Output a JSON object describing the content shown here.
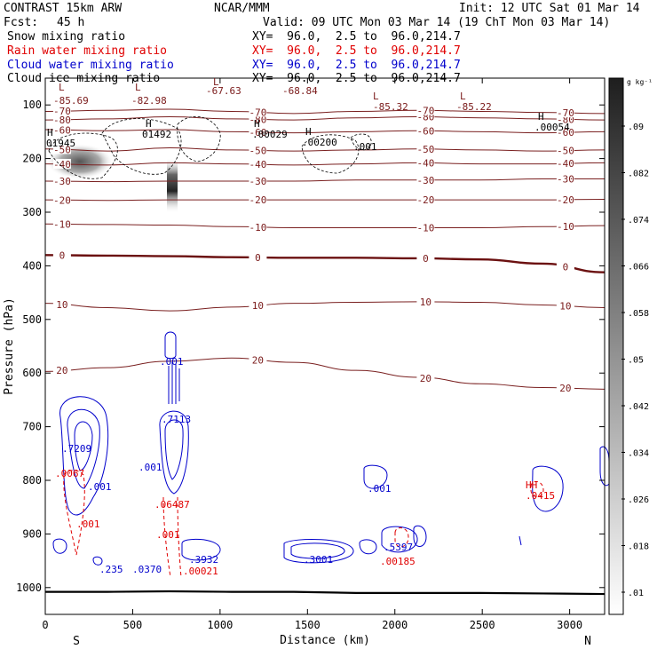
{
  "header": {
    "model": "CONTRAST 15km ARW",
    "org": "NCAR/MMM",
    "init": "Init: 12 UTC Sat 01 Mar 14",
    "fcst_label": "Fcst:",
    "fcst_value": "45 h",
    "valid": "Valid: 09 UTC Mon 03 Mar 14 (19 ChT Mon 03 Mar 14)",
    "fields": [
      {
        "name": "Snow mixing ratio",
        "xy": "XY=  96.0,  2.5 to  96.0,214.7",
        "color": "#000000"
      },
      {
        "name": "Rain water mixing ratio",
        "xy": "XY=  96.0,  2.5 to  96.0,214.7",
        "color": "#e00000"
      },
      {
        "name": "Cloud water mixing ratio",
        "xy": "XY=  96.0,  2.5 to  96.0,214.7",
        "color": "#0000cc"
      },
      {
        "name": "Cloud ice mixing ratio",
        "xy": "XY=  96.0,  2.5 to  96.0,214.7",
        "color": "#000000"
      }
    ]
  },
  "chart_data": {
    "type": "contour",
    "xlabel": "Distance (km)",
    "ylabel": "Pressure (hPa)",
    "xlim": [
      0,
      3200
    ],
    "ylim": [
      1050,
      50
    ],
    "x_ticks": [
      0,
      500,
      1000,
      1500,
      2000,
      2500,
      3000
    ],
    "y_ticks": [
      100,
      200,
      300,
      400,
      500,
      600,
      700,
      800,
      900,
      1000
    ],
    "x_end_labels": {
      "left": "S",
      "right": "N"
    },
    "colorbar": {
      "unit": "g kg⁻¹",
      "ticks": [
        ".01",
        ".018",
        ".026",
        ".034",
        ".042",
        ".05",
        ".058",
        ".066",
        ".074",
        ".082",
        ".09"
      ]
    },
    "temperature_contours": [
      {
        "level": "-80",
        "y": [
          128,
          126,
          122,
          126,
          128,
          124,
          122,
          124,
          126,
          128
        ]
      },
      {
        "level": "-70",
        "y": [
          112,
          110,
          108,
          112,
          116,
          112,
          110,
          112,
          114,
          116
        ]
      },
      {
        "level": "-60",
        "y": [
          146,
          148,
          146,
          150,
          152,
          150,
          148,
          150,
          152,
          150
        ]
      },
      {
        "level": "-50",
        "y": [
          182,
          186,
          180,
          184,
          186,
          184,
          182,
          184,
          186,
          184
        ]
      },
      {
        "level": "-40",
        "y": [
          210,
          212,
          208,
          210,
          212,
          210,
          208,
          210,
          210,
          208
        ]
      },
      {
        "level": "-30",
        "y": [
          242,
          243,
          242,
          242,
          242,
          240,
          240,
          240,
          238,
          238
        ]
      },
      {
        "level": "-20",
        "y": [
          277,
          278,
          277,
          277,
          277,
          277,
          277,
          277,
          277,
          276
        ]
      },
      {
        "level": "-10",
        "y": [
          322,
          323,
          324,
          327,
          329,
          329,
          329,
          329,
          327,
          325
        ]
      },
      {
        "level": "0",
        "y": [
          380,
          381,
          382,
          384,
          385,
          385,
          386,
          388,
          396,
          412
        ]
      },
      {
        "level": "10",
        "y": [
          470,
          478,
          484,
          477,
          470,
          468,
          467,
          468,
          473,
          478
        ]
      },
      {
        "level": "20",
        "y": [
          597,
          590,
          578,
          572,
          580,
          595,
          608,
          620,
          627,
          630
        ]
      }
    ],
    "snow_labels": [
      "-85.69",
      "-82.98",
      "-67.63",
      "-68.84",
      "-85.32",
      "-85.22"
    ],
    "ice_labels": [
      "01945",
      "01492",
      ".00029",
      ".00200",
      ".001",
      ".00054"
    ],
    "ice_marks": [
      "H",
      "H",
      "H",
      "H",
      "H",
      "L",
      "L",
      "L",
      "L",
      "L"
    ],
    "rain_labels": [
      ".0067",
      ".001",
      ".06487",
      ".001",
      ".00021",
      ".00185",
      ".0415"
    ],
    "cloud_labels": [
      ".7209",
      ".001",
      ".001",
      ".7113",
      ".235",
      ".0370",
      ".3932",
      ".3001",
      ".001",
      ".5397",
      ".001",
      "HH"
    ],
    "surface_pressure_hpa": [
      1008,
      1008,
      1007,
      1008,
      1008,
      1010,
      1010,
      1010,
      1011,
      1012
    ]
  }
}
